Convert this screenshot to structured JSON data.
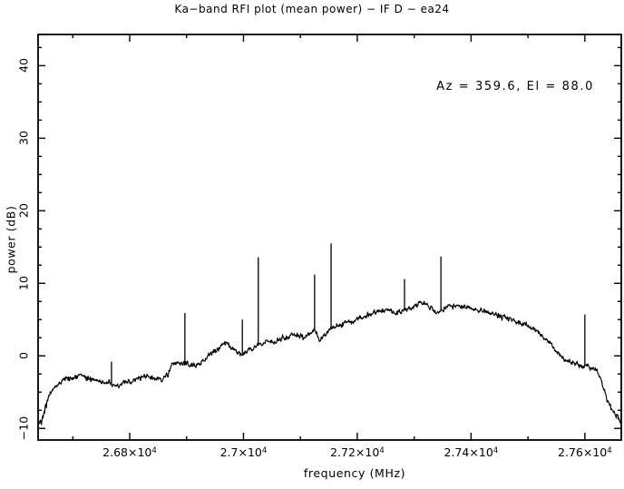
{
  "window": {
    "background": "#ffffff",
    "foreground": "#000000"
  },
  "chart_data": {
    "type": "line",
    "title": "Ka−band RFI plot (mean power) − IF D − ea24",
    "xlabel": "frequency (MHz)",
    "ylabel": "power (dB)",
    "annotation": "Az = 359.6, El = 88.0",
    "line_color": "#000000",
    "xlim": [
      26639,
      27664
    ],
    "ylim": [
      -11.6,
      44.3
    ],
    "x_major_ticks": [
      26800,
      27000,
      27200,
      27400,
      27600
    ],
    "x_tick_labels": [
      {
        "base": "2.68×10",
        "exp": "4"
      },
      {
        "base": "2.7×10",
        "exp": "4"
      },
      {
        "base": "2.72×10",
        "exp": "4"
      },
      {
        "base": "2.74×10",
        "exp": "4"
      },
      {
        "base": "2.76×10",
        "exp": "4"
      }
    ],
    "x_minor_step": 100,
    "y_major_ticks": [
      -10,
      0,
      10,
      20,
      30,
      40
    ],
    "y_tick_labels": [
      "−10",
      "0",
      "10",
      "20",
      "30",
      "40"
    ],
    "y_minor_step": 2.5,
    "grid": false,
    "noise_db": 0.35,
    "baseline_series": {
      "name": "mean power spectrum",
      "points": [
        [
          26639,
          -9.7
        ],
        [
          26647,
          -8.2
        ],
        [
          26657,
          -5.8
        ],
        [
          26666,
          -4.5
        ],
        [
          26679,
          -3.5
        ],
        [
          26698,
          -3.0
        ],
        [
          26712,
          -2.8
        ],
        [
          26728,
          -3.1
        ],
        [
          26744,
          -3.4
        ],
        [
          26760,
          -3.8
        ],
        [
          26776,
          -4.2
        ],
        [
          26792,
          -3.7
        ],
        [
          26808,
          -3.4
        ],
        [
          26826,
          -2.7
        ],
        [
          26840,
          -3.1
        ],
        [
          26856,
          -3.3
        ],
        [
          26867,
          -2.6
        ],
        [
          26875,
          -1.2
        ],
        [
          26886,
          -0.9
        ],
        [
          26898,
          -1.2
        ],
        [
          26910,
          -1.4
        ],
        [
          26923,
          -1.0
        ],
        [
          26939,
          0.0
        ],
        [
          26955,
          1.1
        ],
        [
          26968,
          1.8
        ],
        [
          26983,
          0.9
        ],
        [
          26998,
          0.2
        ],
        [
          27010,
          0.8
        ],
        [
          27026,
          1.5
        ],
        [
          27040,
          2.0
        ],
        [
          27056,
          1.8
        ],
        [
          27066,
          2.4
        ],
        [
          27082,
          2.8
        ],
        [
          27093,
          3.0
        ],
        [
          27106,
          2.5
        ],
        [
          27125,
          3.5
        ],
        [
          27135,
          2.3
        ],
        [
          27144,
          3.0
        ],
        [
          27154,
          3.6
        ],
        [
          27170,
          4.3
        ],
        [
          27194,
          4.9
        ],
        [
          27218,
          5.6
        ],
        [
          27241,
          6.2
        ],
        [
          27254,
          6.5
        ],
        [
          27265,
          5.9
        ],
        [
          27283,
          6.2
        ],
        [
          27302,
          6.9
        ],
        [
          27313,
          7.3
        ],
        [
          27324,
          7.0
        ],
        [
          27337,
          5.9
        ],
        [
          27347,
          6.1
        ],
        [
          27358,
          6.8
        ],
        [
          27369,
          7.0
        ],
        [
          27385,
          6.8
        ],
        [
          27401,
          6.5
        ],
        [
          27420,
          6.2
        ],
        [
          27441,
          5.7
        ],
        [
          27465,
          5.2
        ],
        [
          27488,
          4.5
        ],
        [
          27504,
          3.9
        ],
        [
          27520,
          3.1
        ],
        [
          27536,
          1.9
        ],
        [
          27552,
          0.5
        ],
        [
          27568,
          -0.6
        ],
        [
          27584,
          -1.1
        ],
        [
          27600,
          -1.4
        ],
        [
          27611,
          -1.7
        ],
        [
          27621,
          -2.0
        ],
        [
          27629,
          -3.3
        ],
        [
          27637,
          -5.7
        ],
        [
          27646,
          -7.2
        ],
        [
          27656,
          -8.3
        ],
        [
          27664,
          -9.3
        ]
      ]
    },
    "rfi_spikes": [
      [
        26768,
        -0.8
      ],
      [
        26897,
        5.9
      ],
      [
        26998,
        5.0
      ],
      [
        27026,
        13.6
      ],
      [
        27125,
        11.2
      ],
      [
        27154,
        15.5
      ],
      [
        27283,
        10.6
      ],
      [
        27347,
        13.7
      ],
      [
        27600,
        5.7
      ]
    ]
  }
}
